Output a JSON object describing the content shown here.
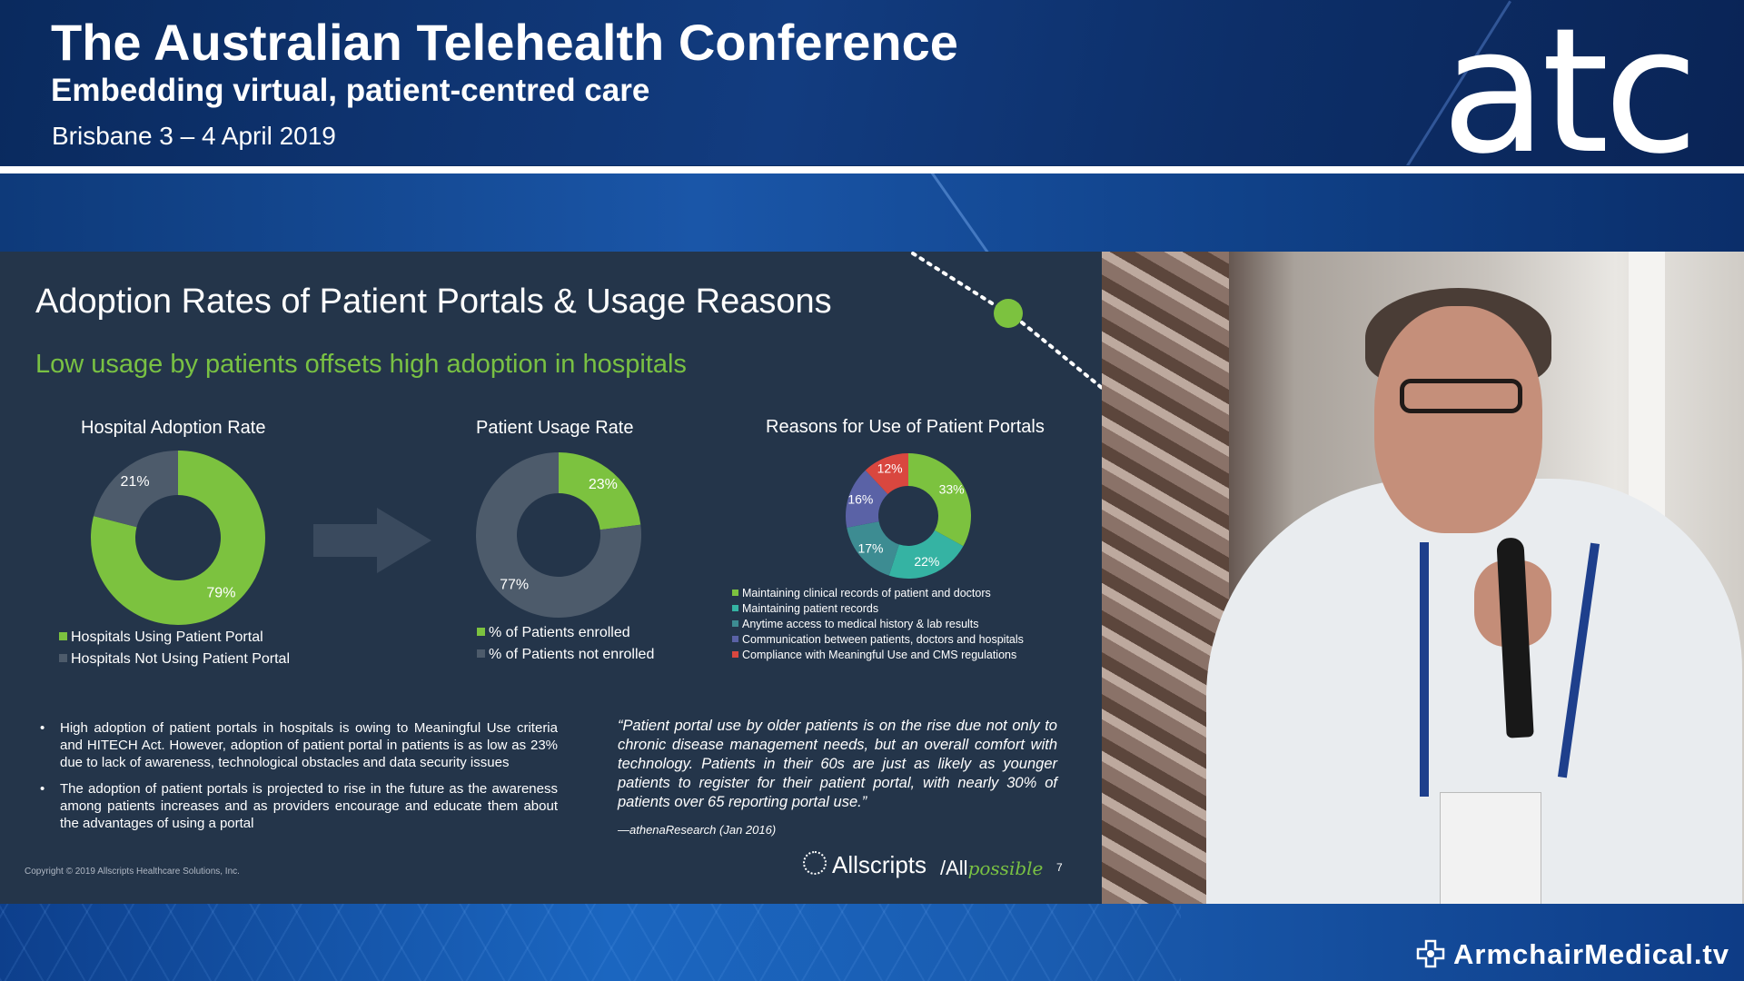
{
  "conference": {
    "title": "The Australian Telehealth Conference",
    "subtitle": "Embedding virtual, patient-centred care",
    "date_location": "Brisbane 3 – 4 April 2019",
    "logo_text": "atc"
  },
  "slide": {
    "title": "Adoption Rates of Patient Portals & Usage Reasons",
    "subtitle": "Low usage by patients offsets high adoption in hospitals",
    "bullets": [
      "High adoption of patient portals in hospitals is owing to Meaningful Use criteria and HITECH Act. However, adoption of patient portal in patients is as low as 23% due to lack of awareness, technological obstacles and data security issues",
      "The adoption of patient portals is projected to rise in the future as the awareness among patients increases and as providers encourage and educate them about the advantages of using a portal"
    ],
    "quote": "“Patient portal use by older patients is on the rise due not only to chronic disease management needs, but an overall comfort with technology. Patients in their 60s are just as likely as younger patients to register for their patient portal, with nearly 30% of patients over 65 reporting portal use.”",
    "quote_source": "—athenaResearch (Jan 2016)",
    "copyright": "Copyright © 2019 Allscripts Healthcare Solutions, Inc.",
    "brand": "Allscripts",
    "tagline_all": "All",
    "tagline_possible": "possible",
    "page_number": "7"
  },
  "chart_data": [
    {
      "type": "pie",
      "title": "Hospital Adoption Rate",
      "donut": true,
      "categories": [
        "Hospitals Using Patient Portal",
        "Hospitals Not Using Patient Portal"
      ],
      "values": [
        79,
        21
      ],
      "labels": [
        "79%",
        "21%"
      ],
      "colors": [
        "#7cc23f",
        "#4d5b6b"
      ],
      "legend": "bottom"
    },
    {
      "type": "pie",
      "title": "Patient Usage Rate",
      "donut": true,
      "categories": [
        "% of Patients enrolled",
        "% of Patients not enrolled"
      ],
      "values": [
        23,
        77
      ],
      "labels": [
        "23%",
        "77%"
      ],
      "colors": [
        "#7cc23f",
        "#4d5b6b"
      ],
      "legend": "bottom"
    },
    {
      "type": "pie",
      "title": "Reasons for Use of Patient Portals",
      "donut": true,
      "categories": [
        "Maintaining clinical records of patient and doctors",
        "Maintaining patient records",
        "Anytime access to medical history & lab results",
        "Communication between patients, doctors and hospitals",
        "Compliance with Meaningful Use and CMS regulations"
      ],
      "values": [
        33,
        22,
        17,
        16,
        12
      ],
      "labels": [
        "33%",
        "22%",
        "17%",
        "16%",
        "12%"
      ],
      "colors": [
        "#7cc23f",
        "#35b3a3",
        "#3d8c92",
        "#5a62a6",
        "#d9473f"
      ],
      "legend": "bottom"
    }
  ],
  "footer": {
    "brand": "ArmchairMedical.tv"
  }
}
